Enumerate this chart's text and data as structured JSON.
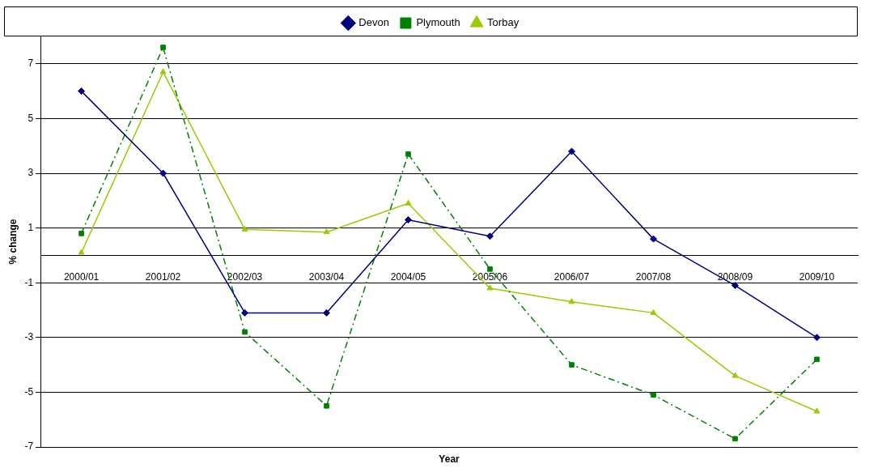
{
  "chart_data": {
    "type": "line",
    "xlabel": "Year",
    "ylabel": "% change",
    "categories": [
      "2000/01",
      "2001/02",
      "2002/03",
      "2003/04",
      "2004/05",
      "2005/06",
      "2006/07",
      "2007/08",
      "2008/09",
      "2009/10"
    ],
    "series": [
      {
        "name": "Devon",
        "color": "#000080",
        "marker": "diamond",
        "line_style": "solid",
        "values": [
          6.0,
          3.0,
          -2.1,
          -2.1,
          1.3,
          0.7,
          3.8,
          0.6,
          -1.1,
          -3.0
        ]
      },
      {
        "name": "Plymouth",
        "color": "#008000",
        "marker": "square",
        "line_style": "dashed",
        "values": [
          0.8,
          7.6,
          -2.8,
          -5.5,
          3.7,
          -0.5,
          -4.0,
          -5.1,
          -6.7,
          -3.8
        ]
      },
      {
        "name": "Torbay",
        "color": "#99cc00",
        "marker": "triangle",
        "line_style": "solid",
        "values": [
          0.1,
          6.7,
          0.95,
          0.85,
          1.9,
          -1.2,
          -1.7,
          -2.1,
          -4.4,
          -5.7
        ]
      }
    ],
    "ylim": [
      -7,
      8
    ],
    "yticks": [
      -7,
      -5,
      -3,
      -1,
      1,
      3,
      5,
      7
    ],
    "grid": "y",
    "legend": "top"
  }
}
